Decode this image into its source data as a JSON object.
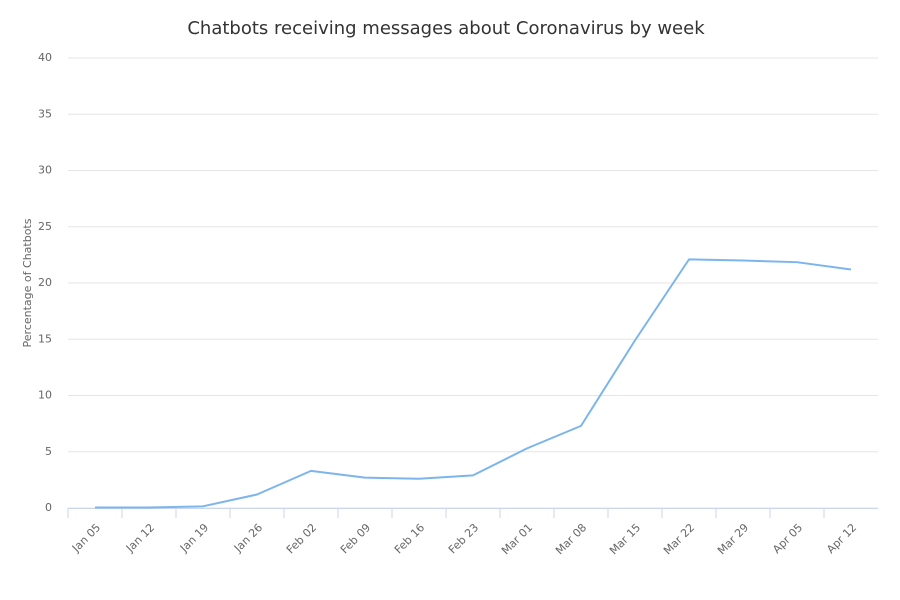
{
  "chart_data": {
    "type": "line",
    "title": "Chatbots receiving messages about Coronavirus by week",
    "y_label": "Percentage of Chatbots",
    "categories": [
      "Jan 05",
      "Jan 12",
      "Jan 19",
      "Jan 26",
      "Feb 02",
      "Feb 09",
      "Feb 16",
      "Feb 23",
      "Mar 01",
      "Mar 08",
      "Mar 15",
      "Mar 22",
      "Mar 29",
      "Apr 05",
      "Apr 12"
    ],
    "values": [
      0.05,
      0.05,
      0.15,
      1.2,
      3.3,
      2.7,
      2.6,
      2.9,
      5.3,
      7.3,
      14.9,
      22.1,
      22.0,
      21.85,
      21.2
    ],
    "color": "#7cb5ec",
    "ylim": [
      0,
      40
    ],
    "yticks": [
      0,
      5,
      10,
      15,
      20,
      25,
      30,
      35,
      40
    ],
    "grid": true
  }
}
